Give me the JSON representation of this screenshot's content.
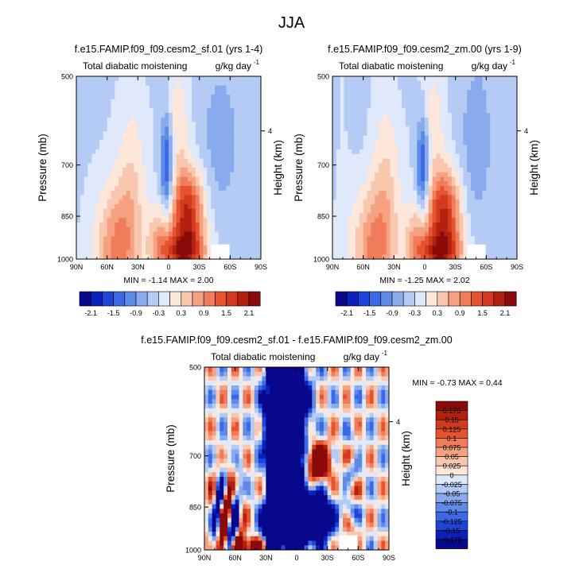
{
  "page": {
    "title": "JJA"
  },
  "chart_data": [
    {
      "type": "heatmap",
      "title": "f.e15.FAMIP.f09_f09.cesm2_sf.01 (yrs 1-4)",
      "subtitle_left": "Total diabatic moistening",
      "units": "g/kg day",
      "units_exp": "-1",
      "xlabel": "",
      "ylabel": "Pressure (mb)",
      "ylabel_right": "Height (km)",
      "xticks": [
        "90N",
        "60N",
        "30N",
        "0",
        "30S",
        "60S",
        "90S"
      ],
      "yticks": [
        "500",
        "700",
        "850",
        "1000"
      ],
      "ytick_values": [
        500,
        700,
        850,
        1000
      ],
      "yticks_right": [
        "4"
      ],
      "ylim": [
        500,
        1000
      ],
      "stats_text": "MIN =  -1.14   MAX =   2.00",
      "min": -1.14,
      "max": 2.0
    },
    {
      "type": "heatmap",
      "title": "f.e15.FAMIP.f09_f09.cesm2_zm.00 (yrs 1-9)",
      "subtitle_left": "Total diabatic moistening",
      "units": "g/kg day",
      "units_exp": "-1",
      "xlabel": "",
      "ylabel": "Pressure (mb)",
      "ylabel_right": "Height (km)",
      "xticks": [
        "90N",
        "60N",
        "30N",
        "0",
        "30S",
        "60S",
        "90S"
      ],
      "yticks": [
        "500",
        "700",
        "850",
        "1000"
      ],
      "ytick_values": [
        500,
        700,
        850,
        1000
      ],
      "yticks_right": [
        "4"
      ],
      "ylim": [
        500,
        1000
      ],
      "stats_text": "MIN =  -1.25   MAX =   2.02",
      "min": -1.25,
      "max": 2.02
    },
    {
      "type": "heatmap",
      "title": "f.e15.FAMIP.f09_f09.cesm2_sf.01 - f.e15.FAMIP.f09_f09.cesm2_zm.00",
      "subtitle_left": "Total diabatic moistening",
      "units": "g/kg day",
      "units_exp": "-1",
      "xlabel": "",
      "ylabel": "Pressure (mb)",
      "ylabel_right": "Height (km)",
      "xticks": [
        "90N",
        "60N",
        "30N",
        "0",
        "30S",
        "60S",
        "90S"
      ],
      "yticks": [
        "500",
        "700",
        "850",
        "1000"
      ],
      "ytick_values": [
        500,
        700,
        850,
        1000
      ],
      "yticks_right": [
        "4"
      ],
      "ylim": [
        500,
        1000
      ],
      "stats_text": "MIN =  -0.73   MAX =   0.44",
      "min": -0.73,
      "max": 0.44
    }
  ],
  "colorbar_main": {
    "labels": [
      "-2.1",
      "-1.5",
      "-0.9",
      "-0.3",
      "0.3",
      "0.9",
      "1.5",
      "2.1"
    ],
    "colors": [
      "#08088c",
      "#0b20b8",
      "#1e45d8",
      "#3a68e6",
      "#5e8ae8",
      "#89abee",
      "#b4cbf5",
      "#dfe9fb",
      "#fde7da",
      "#f9c7ae",
      "#f6a282",
      "#f07c5c",
      "#e5532f",
      "#d23a1e",
      "#b2200f",
      "#8a0a0a"
    ]
  },
  "colorbar_diff": {
    "labels": [
      "0.175",
      "0.15",
      "0.125",
      "0.1",
      "0.075",
      "0.05",
      "0.025",
      "0",
      "-0.025",
      "-0.05",
      "-0.075",
      "-0.1",
      "-0.125",
      "-0.15",
      "-0.175"
    ],
    "colors": [
      "#8a0a0a",
      "#b2200f",
      "#d23a1e",
      "#e5532f",
      "#f07c5c",
      "#f6a282",
      "#f9c7ae",
      "#fde7da",
      "#dfe9fb",
      "#b4cbf5",
      "#89abee",
      "#5e8ae8",
      "#3a68e6",
      "#1e45d8",
      "#0b20b8",
      "#08088c"
    ]
  }
}
